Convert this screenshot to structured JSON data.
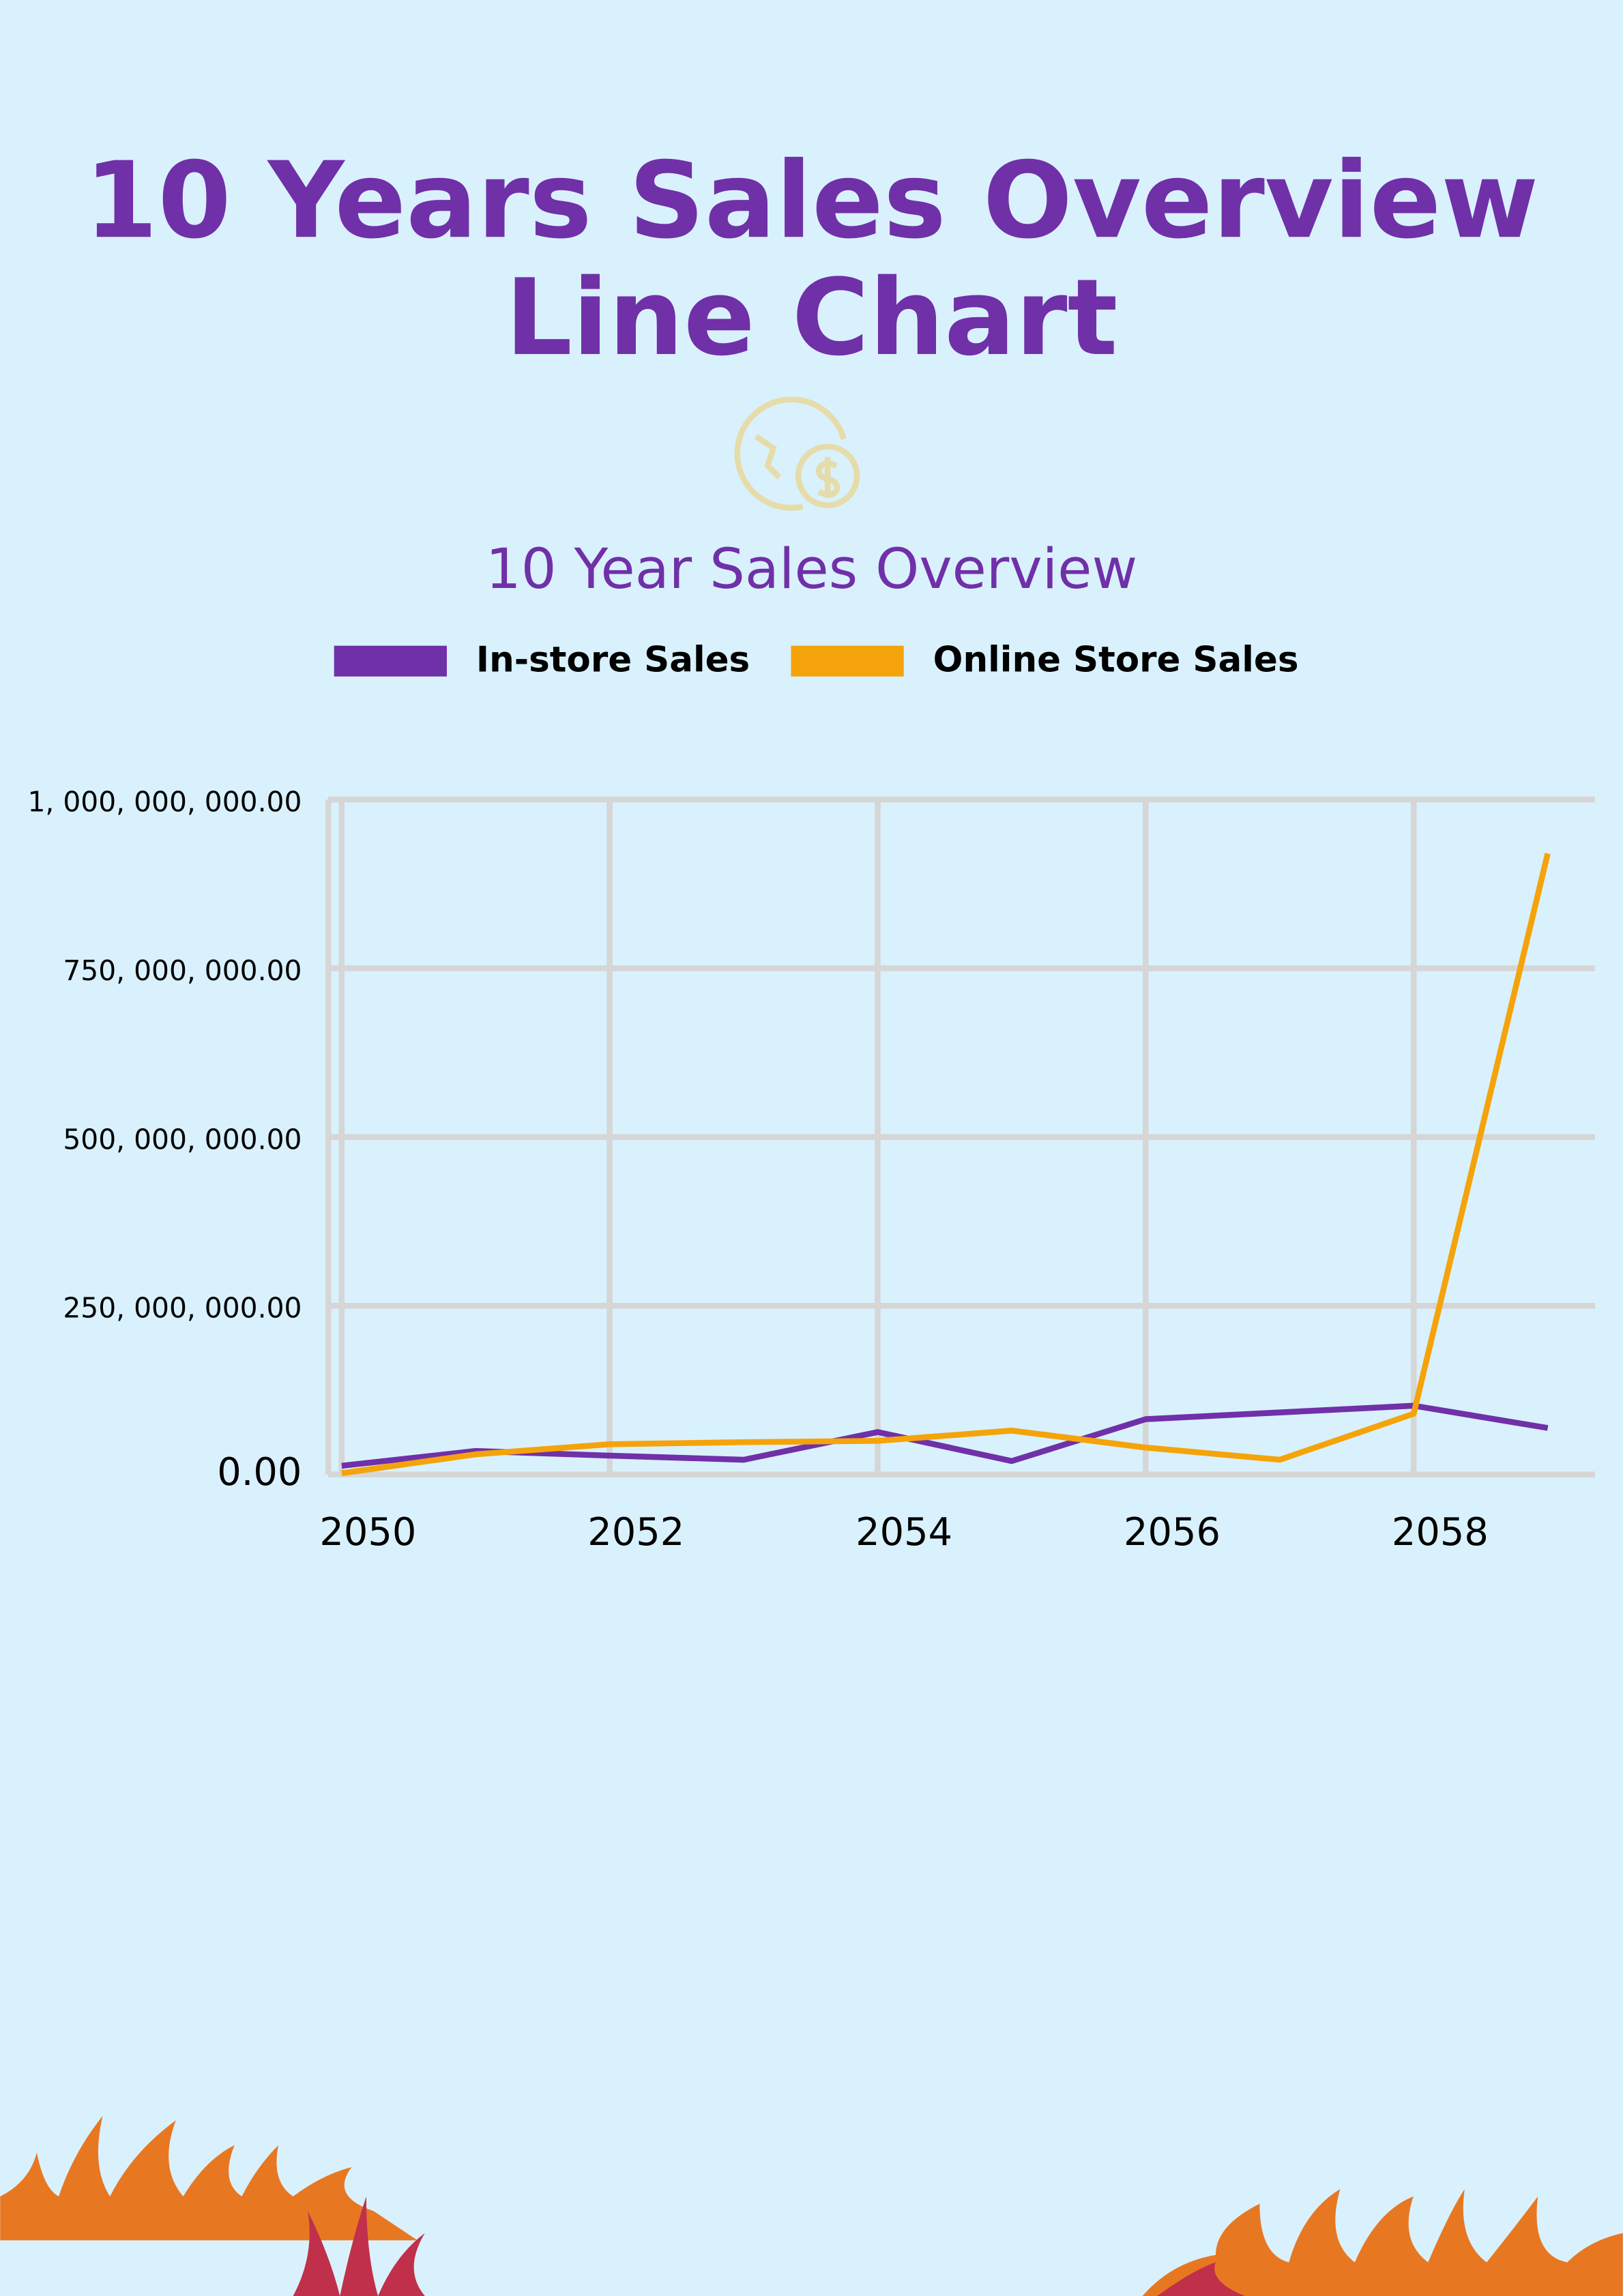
{
  "chart_data": {
    "type": "line",
    "title": [
      "10 Years Sales Overview",
      "Line Chart"
    ],
    "subtitle": "10 Year Sales Overview",
    "x": [
      2050,
      2051,
      2052,
      2053,
      2054,
      2055,
      2056,
      2057,
      2058,
      2059
    ],
    "series": [
      {
        "name": "In-store Sales",
        "color": "#7030a8",
        "values": [
          13000000,
          35000000,
          28000000,
          22000000,
          63000000,
          20000000,
          82000000,
          92000000,
          102000000,
          69000000
        ]
      },
      {
        "name": "Online Store Sales",
        "color": "#f5a30a",
        "values": [
          2000000,
          30000000,
          45000000,
          48000000,
          50000000,
          65000000,
          40000000,
          22000000,
          90000000,
          920000000
        ]
      }
    ],
    "xlim": [
      2049.9,
      2059.2
    ],
    "xticks": [
      2050,
      2052,
      2054,
      2056,
      2058
    ],
    "ylim": [
      0,
      1000000000
    ],
    "yticks": [
      {
        "value": 0,
        "label": "0.00"
      },
      {
        "value": 250000000,
        "label": "250, 000, 000.00"
      },
      {
        "value": 500000000,
        "label": "500, 000, 000.00"
      },
      {
        "value": 750000000,
        "label": "750, 000, 000.00"
      },
      {
        "value": 1000000000,
        "label": "1, 000, 000, 000.00"
      }
    ],
    "grid": true
  }
}
